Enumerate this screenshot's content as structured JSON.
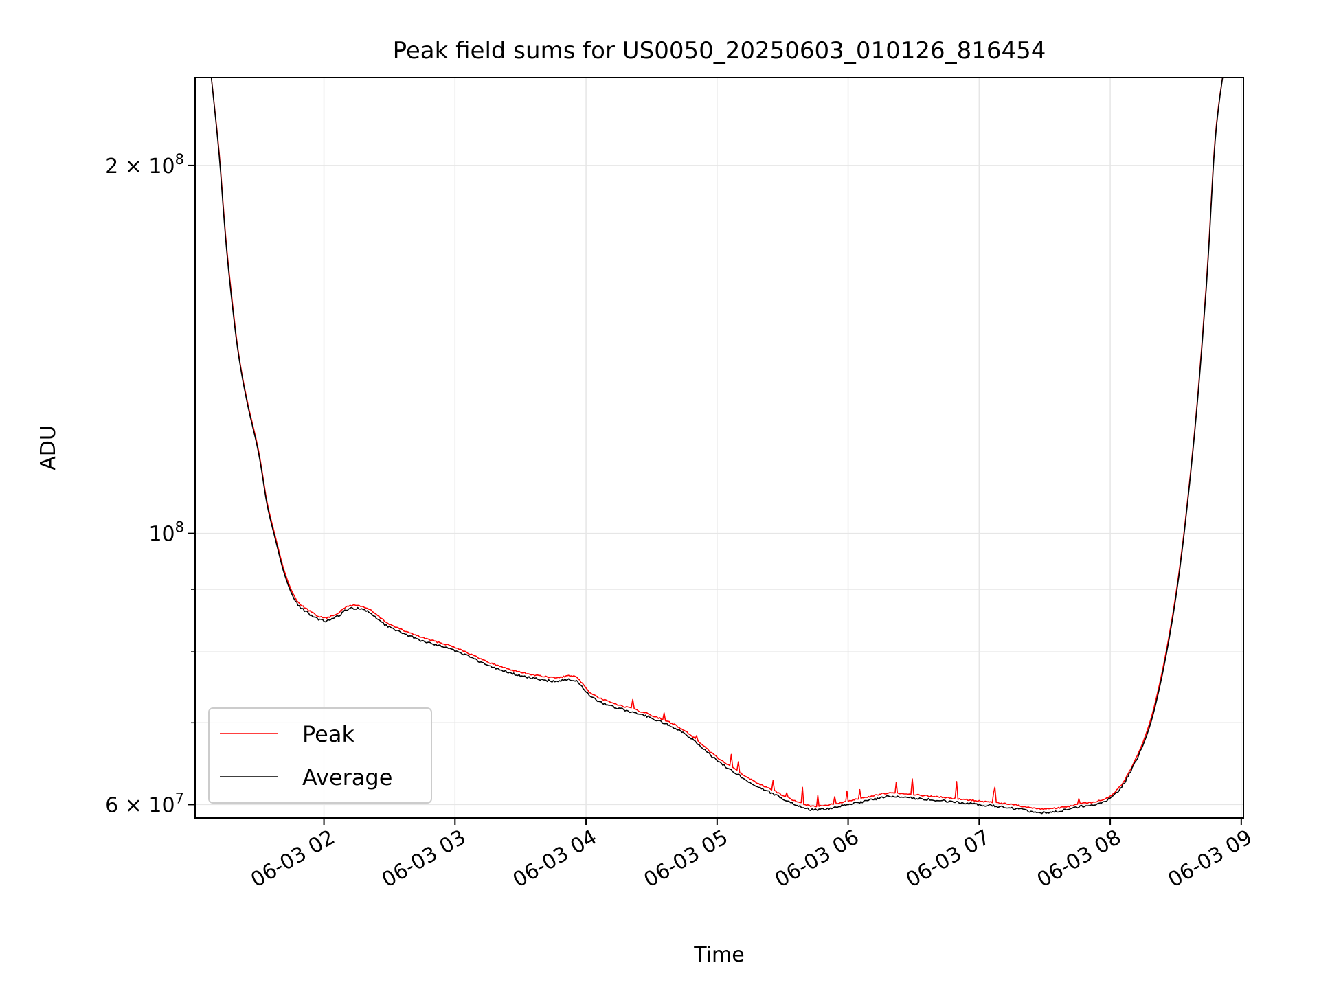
{
  "chart_data": {
    "type": "line",
    "title": "Peak field sums for US0050_20250603_010126_816454",
    "xlabel": "Time",
    "ylabel": "ADU",
    "y_scale": "log",
    "ylim": [
      58500000,
      236000000
    ],
    "xlim": [
      "2025-06-03 01:01",
      "2025-06-03 09:01"
    ],
    "grid": true,
    "legend_position": "lower-left",
    "x_ticks": [
      {
        "value": "2025-06-03 02:00",
        "label": "06-03 02"
      },
      {
        "value": "2025-06-03 03:00",
        "label": "06-03 03"
      },
      {
        "value": "2025-06-03 04:00",
        "label": "06-03 04"
      },
      {
        "value": "2025-06-03 05:00",
        "label": "06-03 05"
      },
      {
        "value": "2025-06-03 06:00",
        "label": "06-03 06"
      },
      {
        "value": "2025-06-03 07:00",
        "label": "06-03 07"
      },
      {
        "value": "2025-06-03 08:00",
        "label": "06-03 08"
      },
      {
        "value": "2025-06-03 09:00",
        "label": "06-03 09"
      }
    ],
    "y_ticks": [
      {
        "value": 60000000,
        "base": "6 × 10",
        "exp": "7"
      },
      {
        "value": 100000000,
        "base": "10",
        "exp": "8"
      },
      {
        "value": 200000000,
        "base": "2 × 10",
        "exp": "8"
      }
    ],
    "y_minor_ticks": [
      70000000,
      80000000,
      90000000,
      300000000
    ],
    "series": [
      {
        "name": "Peak",
        "color": "#ff0000",
        "x": [
          "2025-06-03 01:08",
          "2025-06-03 01:12",
          "2025-06-03 01:15",
          "2025-06-03 01:18",
          "2025-06-03 01:21",
          "2025-06-03 01:25",
          "2025-06-03 01:30",
          "2025-06-03 01:34",
          "2025-06-03 01:38",
          "2025-06-03 01:42",
          "2025-06-03 01:47",
          "2025-06-03 01:53",
          "2025-06-03 02:00",
          "2025-06-03 02:06",
          "2025-06-03 02:12",
          "2025-06-03 02:20",
          "2025-06-03 02:30",
          "2025-06-03 02:45",
          "2025-06-03 03:00",
          "2025-06-03 03:15",
          "2025-06-03 03:30",
          "2025-06-03 03:45",
          "2025-06-03 03:55",
          "2025-06-03 04:05",
          "2025-06-03 04:30",
          "2025-06-03 04:45",
          "2025-06-03 05:00",
          "2025-06-03 05:15",
          "2025-06-03 05:25",
          "2025-06-03 05:35",
          "2025-06-03 05:45",
          "2025-06-03 06:00",
          "2025-06-03 06:10",
          "2025-06-03 06:20",
          "2025-06-03 06:40",
          "2025-06-03 07:00",
          "2025-06-03 07:15",
          "2025-06-03 07:30",
          "2025-06-03 07:45",
          "2025-06-03 08:00",
          "2025-06-03 08:10",
          "2025-06-03 08:20",
          "2025-06-03 08:30",
          "2025-06-03 08:38",
          "2025-06-03 08:44",
          "2025-06-03 08:48",
          "2025-06-03 08:52"
        ],
        "values": [
          240000000,
          205000000,
          175000000,
          155000000,
          140000000,
          128000000,
          117000000,
          106000000,
          99000000,
          93000000,
          88500000,
          86500000,
          85300000,
          86000000,
          87300000,
          86800000,
          84300000,
          82200000,
          80700000,
          78500000,
          77000000,
          76200000,
          76300000,
          73500000,
          71000000,
          69000000,
          65600000,
          63000000,
          61700000,
          60500000,
          59800000,
          60400000,
          60900000,
          61300000,
          60900000,
          60400000,
          60000000,
          59500000,
          60000000,
          61000000,
          64500000,
          72000000,
          89000000,
          118000000,
          160000000,
          210000000,
          240000000
        ]
      },
      {
        "name": "Average",
        "color": "#000000",
        "x": [
          "2025-06-03 01:08",
          "2025-06-03 01:12",
          "2025-06-03 01:15",
          "2025-06-03 01:18",
          "2025-06-03 01:21",
          "2025-06-03 01:25",
          "2025-06-03 01:30",
          "2025-06-03 01:34",
          "2025-06-03 01:38",
          "2025-06-03 01:42",
          "2025-06-03 01:47",
          "2025-06-03 01:53",
          "2025-06-03 02:00",
          "2025-06-03 02:06",
          "2025-06-03 02:12",
          "2025-06-03 02:20",
          "2025-06-03 02:30",
          "2025-06-03 02:45",
          "2025-06-03 03:00",
          "2025-06-03 03:15",
          "2025-06-03 03:30",
          "2025-06-03 03:45",
          "2025-06-03 03:55",
          "2025-06-03 04:05",
          "2025-06-03 04:30",
          "2025-06-03 04:45",
          "2025-06-03 05:00",
          "2025-06-03 05:15",
          "2025-06-03 05:25",
          "2025-06-03 05:35",
          "2025-06-03 05:45",
          "2025-06-03 06:00",
          "2025-06-03 06:10",
          "2025-06-03 06:20",
          "2025-06-03 06:40",
          "2025-06-03 07:00",
          "2025-06-03 07:15",
          "2025-06-03 07:30",
          "2025-06-03 07:45",
          "2025-06-03 08:00",
          "2025-06-03 08:10",
          "2025-06-03 08:20",
          "2025-06-03 08:30",
          "2025-06-03 08:38",
          "2025-06-03 08:44",
          "2025-06-03 08:48",
          "2025-06-03 08:52"
        ],
        "values": [
          240000000,
          204000000,
          174000000,
          154000000,
          139500000,
          127500000,
          116500000,
          105500000,
          98500000,
          92500000,
          88000000,
          86000000,
          84800000,
          85500000,
          86800000,
          86300000,
          83800000,
          81700000,
          80200000,
          78000000,
          76500000,
          75700000,
          75800000,
          73000000,
          70600000,
          68600000,
          65200000,
          62600000,
          61300000,
          60100000,
          59400000,
          60000000,
          60500000,
          60900000,
          60500000,
          60000000,
          59600000,
          59100000,
          59700000,
          60700000,
          64200000,
          71500000,
          88500000,
          117500000,
          159000000,
          209000000,
          240000000
        ]
      }
    ]
  }
}
